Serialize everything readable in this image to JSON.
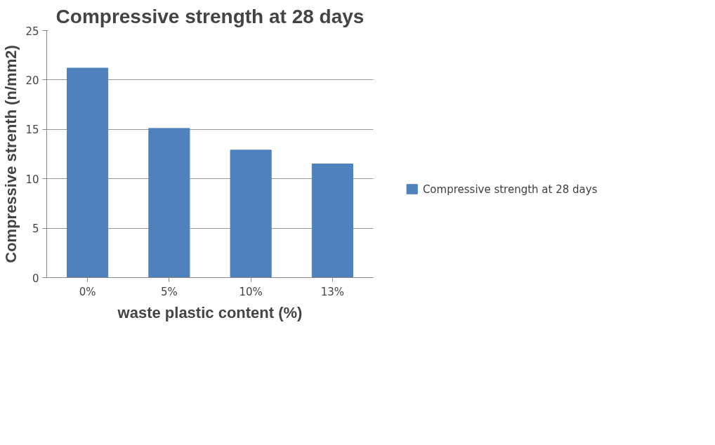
{
  "chart_data": {
    "type": "bar",
    "title": "Compressive strength at 28 days",
    "xlabel": "waste plastic content (%)",
    "ylabel": "Compressive strenth (n/mm2)",
    "categories": [
      "0%",
      "5%",
      "10%",
      "13%"
    ],
    "series": [
      {
        "name": "Compressive strength at 28 days",
        "color": "#4f81bd",
        "values": [
          21.2,
          15.1,
          12.9,
          11.5
        ]
      }
    ],
    "ylim": [
      0,
      25
    ],
    "yticks": [
      0,
      5,
      10,
      15,
      20,
      25
    ],
    "grid": "y",
    "legend": "right"
  }
}
